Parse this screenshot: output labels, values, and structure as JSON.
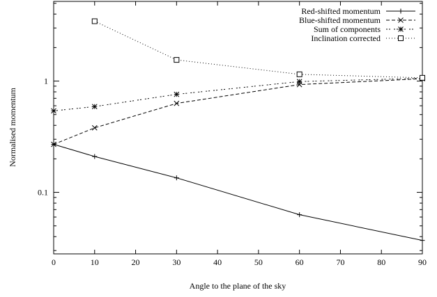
{
  "chart_data": {
    "type": "line",
    "title": "",
    "xlabel": "Angle to the plane of the sky",
    "ylabel": "Normalised momentum",
    "xlim": [
      0,
      90
    ],
    "ylim": [
      0.028,
      5.2
    ],
    "yscale": "log",
    "x_ticks": [
      0,
      10,
      20,
      30,
      40,
      50,
      60,
      70,
      80,
      90
    ],
    "y_ticks": [
      0.1,
      1
    ],
    "y_tick_labels": [
      "0.1",
      "1"
    ],
    "legend_position": "top-right",
    "series": [
      {
        "name": "Red-shifted momentum",
        "line": "solid",
        "marker": "plus",
        "x": [
          0,
          10,
          30,
          60,
          90
        ],
        "y": [
          0.27,
          0.21,
          0.135,
          0.063,
          0.037
        ]
      },
      {
        "name": "Blue-shifted momentum",
        "line": "dashed",
        "marker": "cross",
        "x": [
          0,
          10,
          30,
          60,
          90
        ],
        "y": [
          0.27,
          0.38,
          0.63,
          0.93,
          1.05
        ]
      },
      {
        "name": "Sum of components",
        "line": "dotdash",
        "marker": "star",
        "x": [
          0,
          10,
          30,
          60,
          90
        ],
        "y": [
          0.54,
          0.59,
          0.76,
          0.99,
          1.06
        ]
      },
      {
        "name": "Inclination corrected",
        "line": "dotted",
        "marker": "square",
        "x": [
          10,
          30,
          60,
          90
        ],
        "y": [
          3.45,
          1.55,
          1.15,
          1.07
        ]
      }
    ]
  }
}
